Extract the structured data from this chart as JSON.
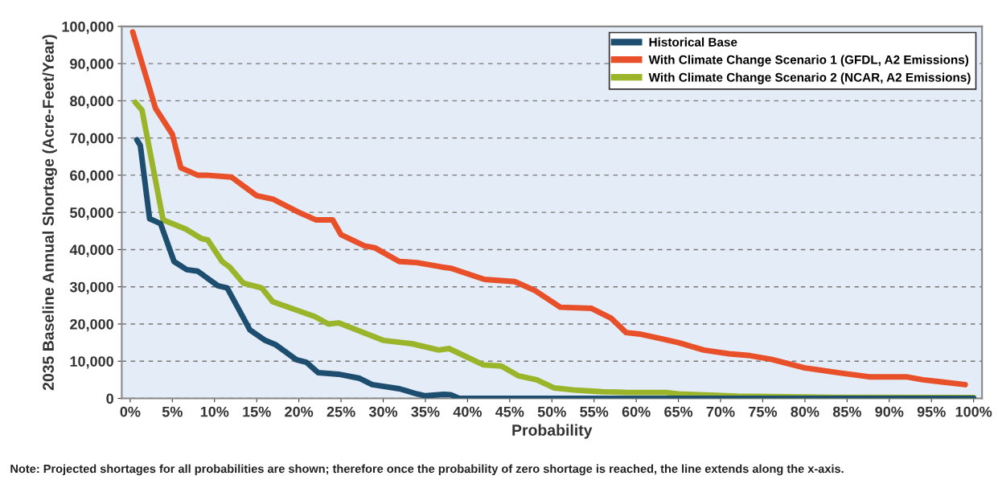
{
  "chart_data": {
    "type": "line",
    "xlabel": "Probability",
    "ylabel": "2035 Baseline Annual Shortage (Acre-Feet/Year)",
    "annotations": [
      "Note: Projected shortages for all probabilities are shown; therefore once the probability of zero shortage is reached, the line extends along the x-axis."
    ],
    "series": [
      {
        "name": "Historical Base",
        "color": "#1d4e70",
        "x": [
          0.8,
          1.2,
          2.3,
          3.6,
          5.2,
          6.7,
          8,
          10.4,
          11.5,
          14.2,
          16,
          17.2,
          19.7,
          20.9,
          22.3,
          24.7,
          27.2,
          28.7,
          31.9,
          34,
          35,
          37.2,
          38,
          39,
          50,
          60,
          70,
          80,
          90,
          100
        ],
        "values": [
          69500,
          68000,
          48300,
          47000,
          36800,
          34600,
          34200,
          30300,
          29700,
          18400,
          15600,
          14500,
          10400,
          9700,
          6900,
          6500,
          5400,
          3700,
          2600,
          1200,
          700,
          1100,
          1000,
          0,
          0,
          0,
          0,
          0,
          0,
          0
        ]
      },
      {
        "name": "With Climate Change Scenario 1 (GFDL, A2 Emissions)",
        "color": "#e8502a",
        "x": [
          0.3,
          3,
          5,
          6,
          8,
          9,
          12,
          15,
          17,
          20,
          22,
          24,
          25,
          27.8,
          29,
          31.9,
          34,
          37,
          38,
          40,
          42,
          45.6,
          48,
          51,
          54.7,
          57,
          58.8,
          60.4,
          63,
          65,
          68,
          71,
          73.5,
          76,
          80,
          84,
          87.6,
          92,
          94,
          96,
          99
        ],
        "values": [
          98500,
          78000,
          71000,
          62000,
          60000,
          60000,
          59500,
          54500,
          53500,
          50000,
          48000,
          48000,
          44000,
          41000,
          40500,
          36800,
          36500,
          35300,
          35000,
          33500,
          32000,
          31400,
          29000,
          24500,
          24200,
          21600,
          17700,
          17300,
          16000,
          15000,
          13000,
          12000,
          11500,
          10500,
          8200,
          6900,
          5800,
          5800,
          5000,
          4500,
          3700
        ]
      },
      {
        "name": "With Climate Change Scenario 2 (NCAR, A2 Emissions)",
        "color": "#9ab52a",
        "x": [
          0.6,
          1.4,
          3.9,
          6.6,
          8.4,
          9.2,
          10.9,
          11.8,
          13.4,
          15.6,
          16.9,
          21.9,
          23.5,
          24.7,
          30,
          33.4,
          36.6,
          37.8,
          41.9,
          44,
          46,
          48.2,
          50.3,
          52.9,
          56,
          59,
          63.5,
          65,
          72,
          83.6,
          100
        ],
        "values": [
          79600,
          77500,
          48000,
          45500,
          43000,
          42600,
          36800,
          35300,
          31000,
          29700,
          26000,
          22000,
          20000,
          20300,
          15600,
          14700,
          13000,
          13400,
          9000,
          8700,
          6100,
          5000,
          2800,
          2200,
          1800,
          1600,
          1600,
          1200,
          600,
          300,
          200
        ]
      }
    ],
    "xlim": [
      -1,
      101
    ],
    "ylim": [
      0,
      100000
    ],
    "xticks": [
      {
        "value": 0,
        "label": "0%"
      },
      {
        "value": 5,
        "label": "5%"
      },
      {
        "value": 10,
        "label": "10%"
      },
      {
        "value": 15,
        "label": "15%"
      },
      {
        "value": 20,
        "label": "20%"
      },
      {
        "value": 25,
        "label": "25%"
      },
      {
        "value": 30,
        "label": "30%"
      },
      {
        "value": 35,
        "label": "35%"
      },
      {
        "value": 40,
        "label": "40%"
      },
      {
        "value": 45,
        "label": "45%"
      },
      {
        "value": 50,
        "label": "50%"
      },
      {
        "value": 55,
        "label": "55%"
      },
      {
        "value": 60,
        "label": "60%"
      },
      {
        "value": 65,
        "label": "65%"
      },
      {
        "value": 70,
        "label": "70%"
      },
      {
        "value": 75,
        "label": "75%"
      },
      {
        "value": 80,
        "label": "80%"
      },
      {
        "value": 85,
        "label": "85%"
      },
      {
        "value": 90,
        "label": "90%"
      },
      {
        "value": 95,
        "label": "95%"
      },
      {
        "value": 100,
        "label": "100%"
      }
    ],
    "yticks": [
      {
        "value": 0,
        "label": "0"
      },
      {
        "value": 10000,
        "label": "10,000"
      },
      {
        "value": 20000,
        "label": "20,000"
      },
      {
        "value": 30000,
        "label": "30,000"
      },
      {
        "value": 40000,
        "label": "40,000"
      },
      {
        "value": 50000,
        "label": "50,000"
      },
      {
        "value": 60000,
        "label": "60,000"
      },
      {
        "value": 70000,
        "label": "70,000"
      },
      {
        "value": 80000,
        "label": "80,000"
      },
      {
        "value": 90000,
        "label": "90,000"
      },
      {
        "value": 100000,
        "label": "100,000"
      }
    ],
    "grid": "y",
    "legend": "top right",
    "marker": "none",
    "line_style": "solid"
  }
}
